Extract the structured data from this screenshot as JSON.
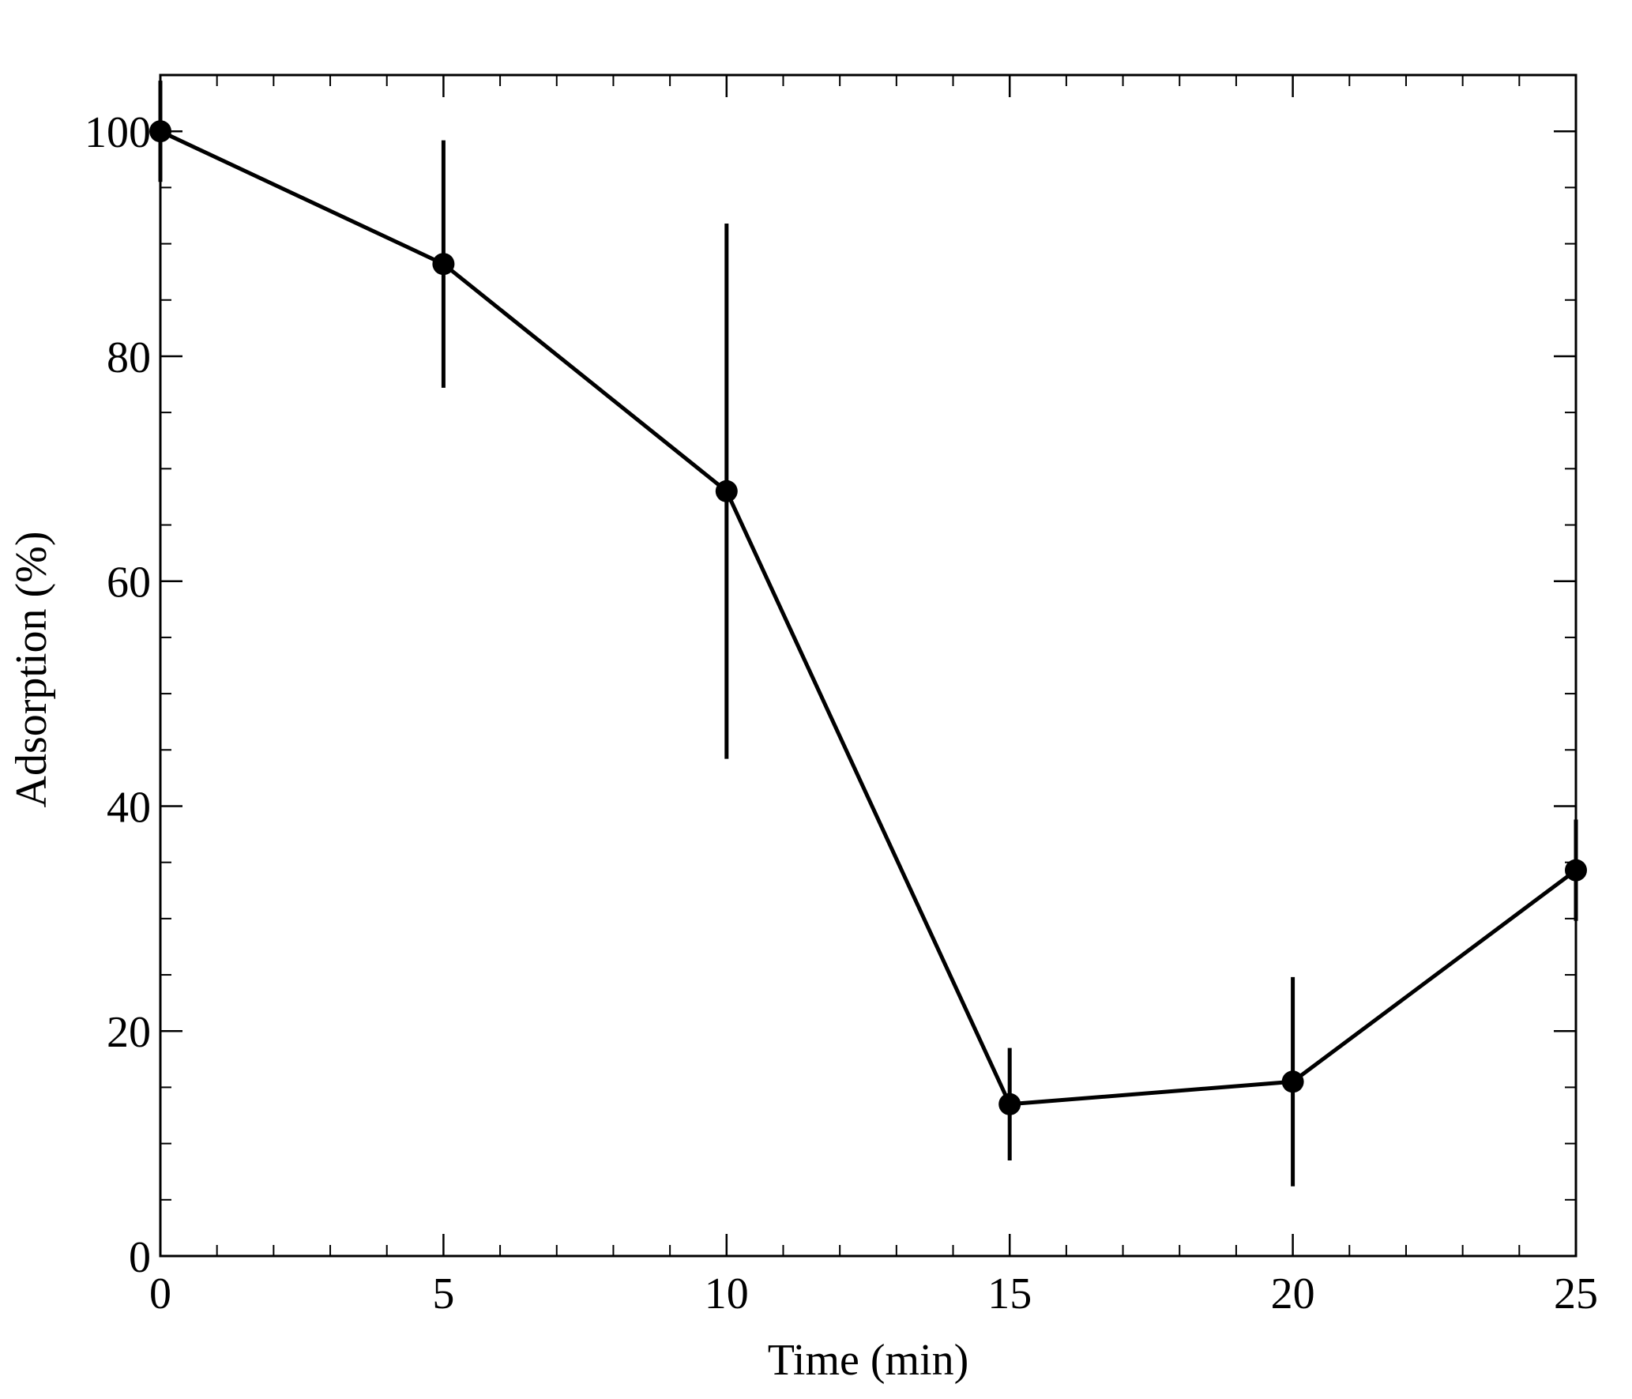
{
  "chart_data": {
    "type": "line",
    "title": "",
    "xlabel": "Time (min)",
    "ylabel": "Adsorption (%)",
    "xlim": [
      0,
      25
    ],
    "ylim": [
      0,
      105
    ],
    "x_ticks": [
      0,
      5,
      10,
      15,
      20,
      25
    ],
    "y_ticks": [
      0,
      20,
      40,
      60,
      80,
      100
    ],
    "x_minor_step": 1,
    "y_minor_step": 5,
    "grid": false,
    "legend": "none",
    "series": [
      {
        "x": [
          0,
          5,
          10,
          15,
          20,
          25
        ],
        "y": [
          100,
          88.2,
          68,
          13.5,
          15.5,
          34.3
        ],
        "error": [
          4.5,
          11,
          23.8,
          5,
          9.3,
          4.5
        ],
        "marker": "filled-circle",
        "color": "#000000"
      }
    ]
  }
}
